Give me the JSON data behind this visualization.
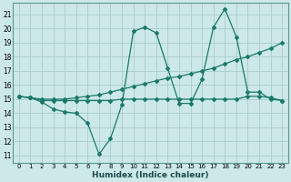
{
  "title": "",
  "xlabel": "Humidex (Indice chaleur)",
  "ylabel": "",
  "background_color": "#cce8e8",
  "grid_color": "#aacccc",
  "line_color": "#1a7a6a",
  "xlim": [
    -0.5,
    23.5
  ],
  "ylim": [
    10.5,
    21.8
  ],
  "yticks": [
    11,
    12,
    13,
    14,
    15,
    16,
    17,
    18,
    19,
    20,
    21
  ],
  "xticks": [
    0,
    1,
    2,
    3,
    4,
    5,
    6,
    7,
    8,
    9,
    10,
    11,
    12,
    13,
    14,
    15,
    16,
    17,
    18,
    19,
    20,
    21,
    22,
    23
  ],
  "line1_x": [
    0,
    1,
    2,
    3,
    4,
    5,
    6,
    7,
    8,
    9,
    10,
    11,
    12,
    13,
    14,
    15,
    16,
    17,
    18,
    19,
    20,
    21,
    22,
    23
  ],
  "line1_y": [
    15.2,
    15.1,
    14.8,
    14.3,
    14.1,
    14.0,
    13.3,
    11.1,
    12.2,
    14.6,
    19.8,
    20.1,
    19.7,
    17.2,
    14.7,
    14.7,
    16.4,
    20.1,
    21.4,
    19.4,
    15.5,
    15.5,
    15.0,
    14.9
  ],
  "line2_x": [
    0,
    1,
    2,
    3,
    4,
    5,
    6,
    7,
    8,
    9,
    10,
    11,
    12,
    13,
    14,
    15,
    16,
    17,
    18,
    19,
    20,
    21,
    22,
    23
  ],
  "line2_y": [
    15.2,
    15.1,
    15.0,
    15.0,
    15.0,
    15.1,
    15.2,
    15.3,
    15.5,
    15.7,
    15.9,
    16.1,
    16.3,
    16.5,
    16.6,
    16.8,
    17.0,
    17.2,
    17.5,
    17.8,
    18.0,
    18.3,
    18.6,
    19.0
  ],
  "line3_x": [
    0,
    1,
    2,
    3,
    4,
    5,
    6,
    7,
    8,
    9,
    10,
    11,
    12,
    13,
    14,
    15,
    16,
    17,
    18,
    19,
    20,
    21,
    22,
    23
  ],
  "line3_y": [
    15.2,
    15.1,
    14.9,
    14.9,
    14.9,
    14.9,
    14.9,
    14.9,
    14.9,
    15.0,
    15.0,
    15.0,
    15.0,
    15.0,
    15.0,
    15.0,
    15.0,
    15.0,
    15.0,
    15.0,
    15.2,
    15.2,
    15.1,
    14.9
  ]
}
